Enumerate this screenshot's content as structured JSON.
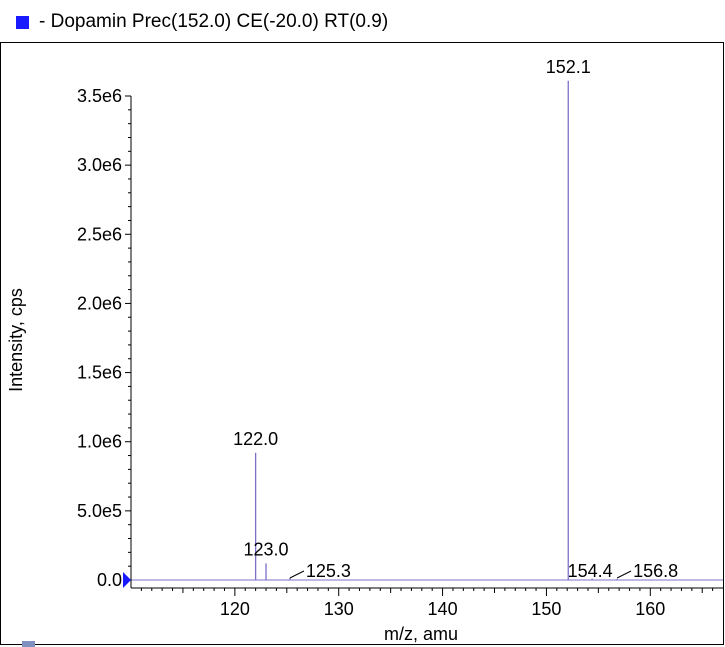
{
  "legend": {
    "text": "- Dopamin  Prec(152.0) CE(-20.0) RT(0.9)",
    "color": "#1a1aff"
  },
  "colors": {
    "stick": "#7f6fc8",
    "axis": "#000000",
    "marker": "#1a1aff"
  },
  "chart_data": {
    "type": "bar",
    "subtype": "mass-spectrum-sticks",
    "xlabel": "m/z, amu",
    "ylabel": "Intensity, cps",
    "xlim": [
      110,
      167
    ],
    "ylim": [
      0,
      3700000
    ],
    "xticks": [
      {
        "value": 120,
        "label": "120"
      },
      {
        "value": 130,
        "label": "130"
      },
      {
        "value": 140,
        "label": "140"
      },
      {
        "value": 150,
        "label": "150"
      },
      {
        "value": 160,
        "label": "160"
      }
    ],
    "yticks": [
      {
        "value": 0,
        "label": "0.0"
      },
      {
        "value": 500000,
        "label": "5.0e5"
      },
      {
        "value": 1000000,
        "label": "1.0e6"
      },
      {
        "value": 1500000,
        "label": "1.5e6"
      },
      {
        "value": 2000000,
        "label": "2.0e6"
      },
      {
        "value": 2500000,
        "label": "2.5e6"
      },
      {
        "value": 3000000,
        "label": "3.0e6"
      },
      {
        "value": 3500000,
        "label": "3.5e6"
      }
    ],
    "peaks": [
      {
        "mz": 122.0,
        "intensity": 920000,
        "label": "122.0"
      },
      {
        "mz": 123.0,
        "intensity": 120000,
        "label": "123.0"
      },
      {
        "mz": 125.3,
        "intensity": 15000,
        "label": "125.3",
        "leader": true
      },
      {
        "mz": 152.1,
        "intensity": 3610000,
        "label": "152.1"
      },
      {
        "mz": 154.4,
        "intensity": 10000,
        "label": "154.4"
      },
      {
        "mz": 156.8,
        "intensity": 8000,
        "label": "156.8",
        "leader": true
      }
    ]
  }
}
